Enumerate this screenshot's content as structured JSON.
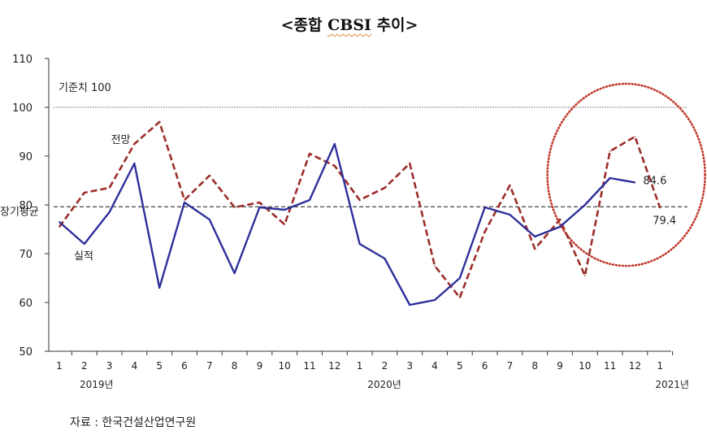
{
  "title": {
    "prefix": "<종합 ",
    "cbsi": "CBSI",
    "suffix": " 추이>"
  },
  "source": "자료 : 한국건설산업연구원",
  "chart_data": {
    "type": "line",
    "categories": [
      "1",
      "2",
      "3",
      "4",
      "5",
      "6",
      "7",
      "8",
      "9",
      "10",
      "11",
      "12",
      "1",
      "2",
      "3",
      "4",
      "5",
      "6",
      "7",
      "8",
      "9",
      "10",
      "11",
      "12",
      "1"
    ],
    "year_labels": [
      {
        "label": "2019년",
        "at_index": 1
      },
      {
        "label": "2020년",
        "at_index": 12.5
      },
      {
        "label": "2021년",
        "at_index": 24
      }
    ],
    "ylim": [
      50,
      110
    ],
    "yticks": [
      50,
      60,
      70,
      80,
      90,
      100,
      110
    ],
    "series": [
      {
        "name": "전망",
        "style": "dashed",
        "color": "#9b2d2a",
        "values": [
          75.5,
          82.5,
          83.5,
          92.5,
          97.0,
          81.0,
          86.0,
          79.5,
          80.5,
          76.0,
          90.5,
          88.0,
          81.0,
          83.5,
          88.5,
          67.5,
          61.0,
          74.5,
          84.0,
          71.0,
          77.0,
          65.5,
          91.0,
          94.0,
          79.4
        ]
      },
      {
        "name": "실적",
        "style": "solid",
        "color": "#2e2f9a",
        "values": [
          76.5,
          72.0,
          78.5,
          88.5,
          63.0,
          80.5,
          77.0,
          66.0,
          79.5,
          79.0,
          81.0,
          92.5,
          72.0,
          69.0,
          59.5,
          60.5,
          65.0,
          79.5,
          78.0,
          73.5,
          75.5,
          80.0,
          85.5,
          84.6,
          null
        ]
      }
    ],
    "reference_lines": [
      {
        "label": "기준치 100",
        "value": 100,
        "style": "dotted",
        "color": "#888888"
      },
      {
        "label": "장기평균",
        "value": 79.6,
        "style": "dashed",
        "color": "#444444"
      }
    ],
    "annotations": [
      {
        "text": "84.6",
        "series": "실적",
        "at_index": 23
      },
      {
        "text": "79.4",
        "series": "전망",
        "at_index": 24
      }
    ],
    "highlight": {
      "shape": "dotted-circle",
      "color": "#c0392b",
      "from_index": 20,
      "to_index": 24
    }
  }
}
